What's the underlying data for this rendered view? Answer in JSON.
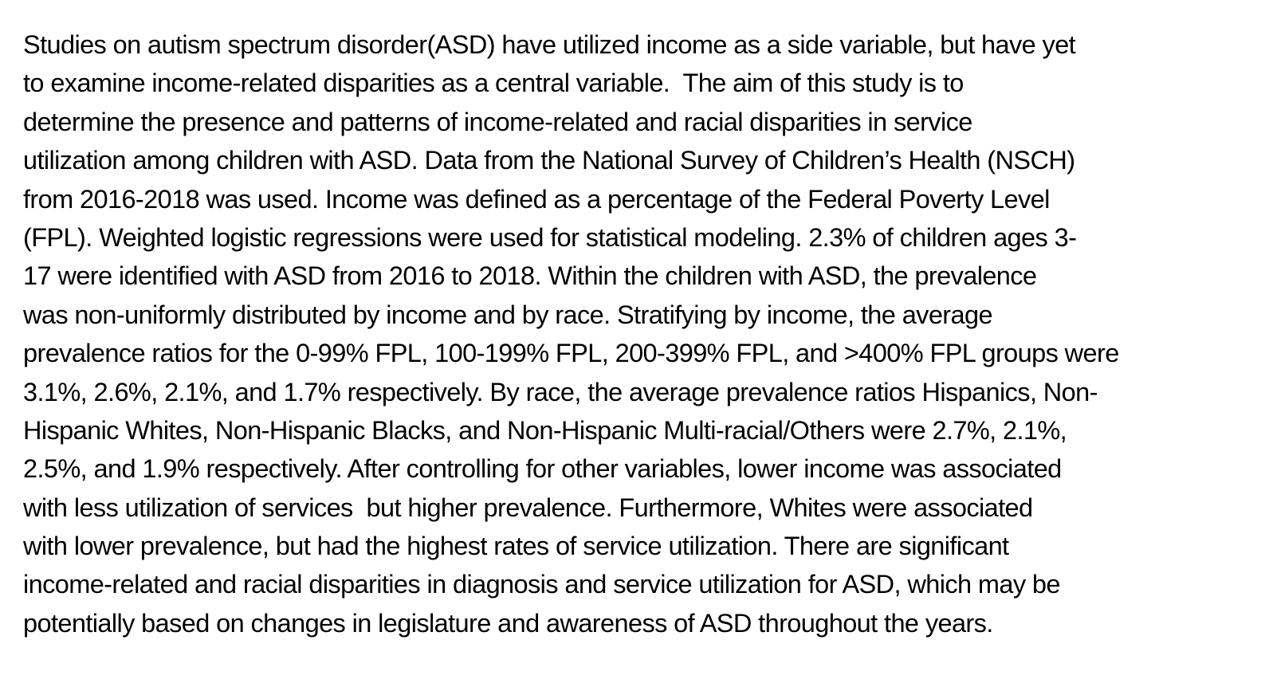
{
  "abstract": {
    "lines": [
      "Studies on autism spectrum disorder(ASD) have utilized income as a side variable, but have yet",
      "to examine income-related disparities as a central variable.  The aim of this study is to",
      "determine the presence and patterns of income-related and racial disparities in service",
      "utilization among children with ASD. Data from the National Survey of Children’s Health (NSCH)",
      "from 2016-2018 was used. Income was defined as a percentage of the Federal Poverty Level",
      "(FPL). Weighted logistic regressions were used for statistical modeling. 2.3% of children ages 3-",
      "17 were identified with ASD from 2016 to 2018. Within the children with ASD, the prevalence",
      "was non-uniformly distributed by income and by race. Stratifying by income, the average",
      "prevalence ratios for the 0-99% FPL, 100-199% FPL, 200-399% FPL, and >400% FPL groups were",
      "3.1%, 2.6%, 2.1%, and 1.7% respectively. By race, the average prevalence ratios Hispanics, Non-",
      "Hispanic Whites, Non-Hispanic Blacks, and Non-Hispanic Multi-racial/Others were 2.7%, 2.1%,",
      "2.5%, and 1.9% respectively. After controlling for other variables, lower income was associated",
      "with less utilization of services  but higher prevalence. Furthermore, Whites were associated",
      "with lower prevalence, but had the highest rates of service utilization. There are significant",
      "income-related and racial disparities in diagnosis and service utilization for ASD, which may be",
      "potentially based on changes in legislature and awareness of ASD throughout the years."
    ]
  }
}
